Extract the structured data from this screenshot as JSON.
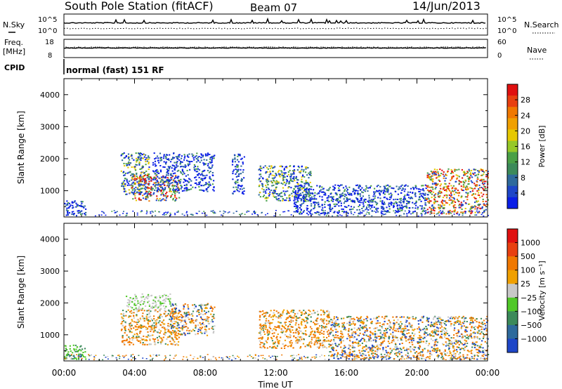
{
  "header": {
    "station": "South Pole Station (fitACF)",
    "beam": "Beam 07",
    "date": "14/Jun/2013"
  },
  "noise_panel": {
    "left_label": "N.Sky",
    "right_label": "N.Search",
    "left_ticks": [
      "10^5",
      "10^0"
    ],
    "right_ticks": [
      "10^5",
      "10^0"
    ]
  },
  "freq_panel": {
    "left_label_line1": "Freq.",
    "left_label_line2": "[MHz]",
    "right_label": "Nave",
    "left_ticks": [
      "18",
      "8"
    ],
    "right_ticks": [
      "60",
      "0"
    ]
  },
  "cpid": {
    "label": "CPID",
    "value": "normal (fast) 151 RF"
  },
  "chart_data": [
    {
      "type": "heatmap",
      "panel": "power",
      "ylabel": "Slant Range [km]",
      "ylim": [
        180,
        4500
      ],
      "yticks": [
        "4000",
        "3000",
        "2000",
        "1000"
      ],
      "xlim": [
        0,
        24
      ],
      "colorbar": {
        "title": "Power [dB]",
        "ticks": [
          "28",
          "24",
          "20",
          "16",
          "12",
          "8",
          "4"
        ],
        "colors": [
          "#0a1ee6",
          "#1e46c8",
          "#2e6a9c",
          "#3c8a5a",
          "#4aa046",
          "#96c828",
          "#e6c800",
          "#f0a000",
          "#f07800",
          "#e84010",
          "#e01010"
        ]
      },
      "regions": [
        {
          "t0": 0.0,
          "t1": 1.2,
          "r0": 250,
          "r1": 700,
          "level": "low"
        },
        {
          "t0": 3.2,
          "t1": 4.8,
          "r0": 900,
          "r1": 2200,
          "level": "mid"
        },
        {
          "t0": 3.8,
          "t1": 6.5,
          "r0": 700,
          "r1": 1500,
          "level": "high"
        },
        {
          "t0": 5.0,
          "t1": 8.5,
          "r0": 1000,
          "r1": 2200,
          "level": "low"
        },
        {
          "t0": 9.5,
          "t1": 10.2,
          "r0": 900,
          "r1": 2200,
          "level": "low"
        },
        {
          "t0": 11.0,
          "t1": 14.0,
          "r0": 700,
          "r1": 1800,
          "level": "mid"
        },
        {
          "t0": 13.0,
          "t1": 20.5,
          "r0": 300,
          "r1": 1200,
          "level": "low"
        },
        {
          "t0": 20.5,
          "t1": 24.0,
          "r0": 300,
          "r1": 1700,
          "level": "high"
        }
      ]
    },
    {
      "type": "heatmap",
      "panel": "velocity",
      "ylabel": "Slant Range [km]",
      "xlabel": "Time UT",
      "ylim": [
        180,
        4500
      ],
      "yticks": [
        "4000",
        "3000",
        "2000",
        "1000"
      ],
      "xlim": [
        0,
        24
      ],
      "xticks": [
        "00:00",
        "04:00",
        "08:00",
        "12:00",
        "16:00",
        "20:00",
        "00:00"
      ],
      "colorbar": {
        "title": "Velocity [m s⁻¹]",
        "ticks": [
          "1000",
          "500",
          "100",
          "25",
          "−25",
          "−100",
          "−500",
          "−1000"
        ],
        "colors": [
          "#1e46c8",
          "#2e6a9c",
          "#3c8a5a",
          "#50c828",
          "#c8c8c8",
          "#f0a000",
          "#f07800",
          "#e84010",
          "#e01010"
        ]
      },
      "regions": [
        {
          "t0": 0.0,
          "t1": 1.2,
          "r0": 250,
          "r1": 700,
          "level": "green"
        },
        {
          "t0": 3.2,
          "t1": 6.5,
          "r0": 700,
          "r1": 1800,
          "level": "orange"
        },
        {
          "t0": 3.5,
          "t1": 6.0,
          "r0": 1800,
          "r1": 2300,
          "level": "grey"
        },
        {
          "t0": 6.0,
          "t1": 8.5,
          "r0": 1000,
          "r1": 2000,
          "level": "mixed"
        },
        {
          "t0": 11.0,
          "t1": 15.0,
          "r0": 600,
          "r1": 1800,
          "level": "orange"
        },
        {
          "t0": 15.0,
          "t1": 24.0,
          "r0": 250,
          "r1": 1600,
          "level": "mixed"
        }
      ]
    }
  ]
}
